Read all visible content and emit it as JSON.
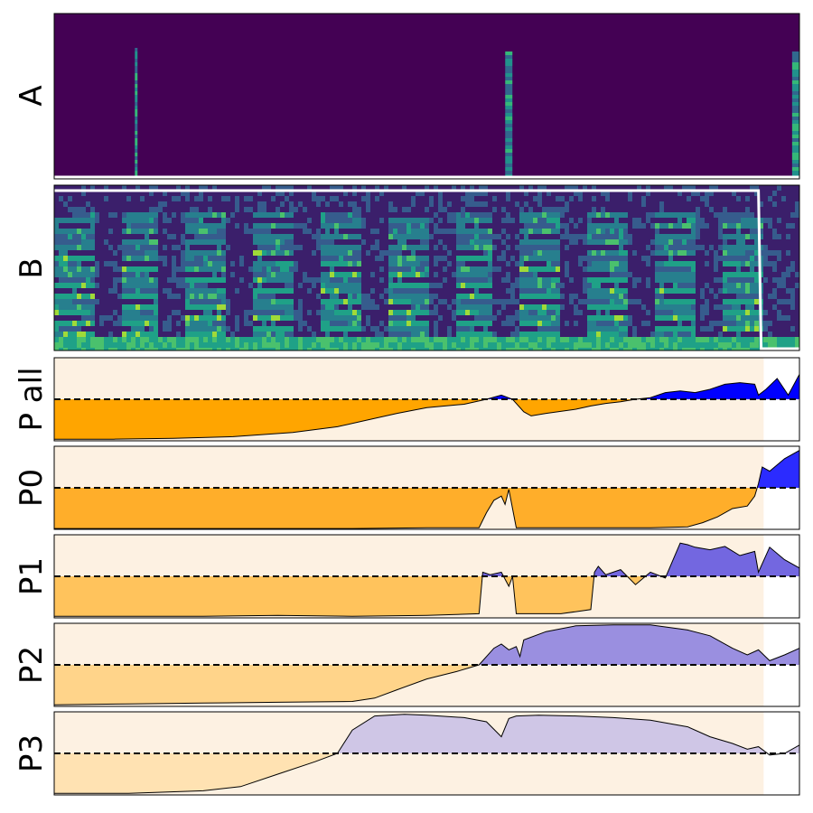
{
  "chart_data": [
    {
      "type": "heatmap",
      "panel_label": "A",
      "description_of_content": "dark spectrogram with sparse bright columns",
      "active_columns_x": [
        0.11,
        0.61,
        0.995
      ],
      "overlay_line": {
        "level": 0.0,
        "color": "#ffffff"
      }
    },
    {
      "type": "heatmap",
      "panel_label": "B",
      "overlay_line": {
        "high_until_x": 0.945,
        "high_level": 0.97,
        "low_level": 0.0,
        "color": "#ffffff"
      }
    },
    {
      "type": "area",
      "panel_label": "P all",
      "threshold": 0.5,
      "fill_above": "#0000ff",
      "fill_below": "#ffa500",
      "shade_until_x": 0.952,
      "x": [
        0.0,
        0.08,
        0.16,
        0.24,
        0.32,
        0.38,
        0.42,
        0.46,
        0.5,
        0.55,
        0.58,
        0.6,
        0.615,
        0.63,
        0.64,
        0.66,
        0.7,
        0.72,
        0.74,
        0.76,
        0.78,
        0.8,
        0.82,
        0.84,
        0.86,
        0.88,
        0.9,
        0.92,
        0.94,
        0.945,
        0.955,
        0.97,
        0.985,
        1.0
      ],
      "y": [
        0.02,
        0.02,
        0.03,
        0.05,
        0.1,
        0.17,
        0.25,
        0.33,
        0.4,
        0.44,
        0.5,
        0.55,
        0.5,
        0.35,
        0.3,
        0.33,
        0.38,
        0.42,
        0.45,
        0.47,
        0.5,
        0.52,
        0.58,
        0.6,
        0.58,
        0.62,
        0.68,
        0.7,
        0.68,
        0.55,
        0.62,
        0.75,
        0.55,
        0.8
      ]
    },
    {
      "type": "area",
      "panel_label": "P0",
      "threshold": 0.5,
      "fill_above": "#2b2bff",
      "fill_below": "#ffae2a",
      "shade_until_x": 0.952,
      "x": [
        0.0,
        0.1,
        0.2,
        0.3,
        0.4,
        0.5,
        0.57,
        0.58,
        0.59,
        0.6,
        0.605,
        0.61,
        0.62,
        0.7,
        0.8,
        0.85,
        0.87,
        0.89,
        0.91,
        0.93,
        0.94,
        0.945,
        0.95,
        0.96,
        0.98,
        1.0
      ],
      "y": [
        0.01,
        0.01,
        0.01,
        0.01,
        0.01,
        0.02,
        0.02,
        0.2,
        0.35,
        0.4,
        0.3,
        0.48,
        0.02,
        0.02,
        0.02,
        0.03,
        0.08,
        0.15,
        0.25,
        0.28,
        0.4,
        0.55,
        0.75,
        0.7,
        0.85,
        0.95
      ]
    },
    {
      "type": "area",
      "panel_label": "P1",
      "threshold": 0.5,
      "fill_above": "#7367e0",
      "fill_below": "#ffc35c",
      "shade_until_x": 0.952,
      "x": [
        0.0,
        0.1,
        0.2,
        0.3,
        0.4,
        0.5,
        0.57,
        0.575,
        0.585,
        0.6,
        0.61,
        0.615,
        0.62,
        0.68,
        0.72,
        0.725,
        0.73,
        0.74,
        0.76,
        0.78,
        0.8,
        0.82,
        0.84,
        0.85,
        0.86,
        0.88,
        0.9,
        0.92,
        0.94,
        0.945,
        0.96,
        0.98,
        1.0
      ],
      "y": [
        0.02,
        0.02,
        0.02,
        0.03,
        0.02,
        0.03,
        0.05,
        0.55,
        0.52,
        0.55,
        0.38,
        0.5,
        0.05,
        0.05,
        0.1,
        0.55,
        0.62,
        0.52,
        0.58,
        0.4,
        0.55,
        0.48,
        0.9,
        0.88,
        0.85,
        0.82,
        0.86,
        0.75,
        0.8,
        0.55,
        0.85,
        0.7,
        0.6
      ]
    },
    {
      "type": "area",
      "panel_label": "P2",
      "threshold": 0.5,
      "fill_above": "#9a8fe0",
      "fill_below": "#ffd48a",
      "shade_until_x": 0.952,
      "x": [
        0.0,
        0.1,
        0.2,
        0.3,
        0.4,
        0.43,
        0.46,
        0.5,
        0.54,
        0.57,
        0.59,
        0.6,
        0.61,
        0.62,
        0.625,
        0.63,
        0.66,
        0.7,
        0.75,
        0.8,
        0.85,
        0.88,
        0.91,
        0.93,
        0.945,
        0.96,
        0.98,
        1.0
      ],
      "y": [
        0.02,
        0.03,
        0.04,
        0.05,
        0.06,
        0.1,
        0.2,
        0.33,
        0.42,
        0.5,
        0.7,
        0.75,
        0.68,
        0.72,
        0.6,
        0.8,
        0.9,
        0.97,
        0.98,
        0.98,
        0.92,
        0.85,
        0.7,
        0.62,
        0.68,
        0.55,
        0.62,
        0.7
      ]
    },
    {
      "type": "area",
      "panel_label": "P3",
      "threshold": 0.5,
      "fill_above": "#cfc6e6",
      "fill_below": "#ffe2b2",
      "shade_until_x": 0.952,
      "x": [
        0.0,
        0.1,
        0.2,
        0.25,
        0.3,
        0.35,
        0.38,
        0.4,
        0.43,
        0.47,
        0.5,
        0.55,
        0.58,
        0.6,
        0.61,
        0.62,
        0.65,
        0.7,
        0.75,
        0.8,
        0.85,
        0.88,
        0.91,
        0.93,
        0.945,
        0.96,
        0.98,
        1.0
      ],
      "y": [
        0.02,
        0.02,
        0.05,
        0.1,
        0.25,
        0.4,
        0.5,
        0.78,
        0.95,
        0.97,
        0.96,
        0.93,
        0.88,
        0.7,
        0.92,
        0.95,
        0.96,
        0.95,
        0.93,
        0.9,
        0.82,
        0.7,
        0.62,
        0.55,
        0.58,
        0.48,
        0.5,
        0.6
      ]
    }
  ]
}
